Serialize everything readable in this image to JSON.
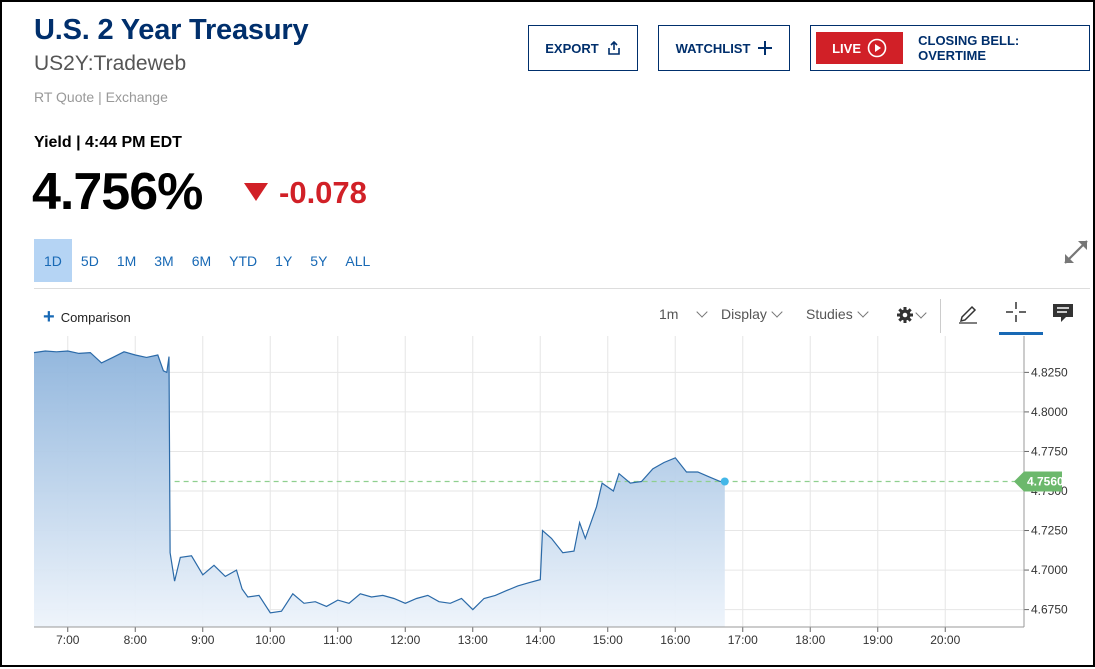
{
  "header": {
    "title": "U.S. 2 Year Treasury",
    "ticker": "US2Y:Tradeweb",
    "quote_source": "RT Quote | Exchange"
  },
  "quote": {
    "yield_label": "Yield | 4:44 PM EDT",
    "value": "4.756%",
    "change": "-0.078",
    "change_color": "#d12027"
  },
  "buttons": {
    "export": "EXPORT",
    "watchlist": "WATCHLIST",
    "live": "LIVE",
    "live_show": "CLOSING BELL: OVERTIME"
  },
  "range_tabs": [
    "1D",
    "5D",
    "1M",
    "3M",
    "6M",
    "YTD",
    "1Y",
    "5Y",
    "ALL"
  ],
  "active_range": "1D",
  "toolbar": {
    "comparison": "Comparison",
    "interval": "1m",
    "display": "Display",
    "studies": "Studies"
  },
  "chart_data": {
    "type": "area",
    "x_unit": "time of day",
    "xlim": [
      "6:30",
      "21:10"
    ],
    "ylim": [
      4.664,
      4.848
    ],
    "x_ticks": [
      "7:00",
      "8:00",
      "9:00",
      "10:00",
      "11:00",
      "12:00",
      "13:00",
      "14:00",
      "15:00",
      "16:00",
      "17:00",
      "18:00",
      "19:00",
      "20:00"
    ],
    "y_ticks": [
      "4.8250",
      "4.8000",
      "4.7750",
      "4.7500",
      "4.7250",
      "4.7000",
      "4.6750"
    ],
    "current_value_label": "4.7560",
    "current_value": 4.756,
    "line_color": "#2b6aa8",
    "grid": true,
    "series": [
      {
        "points": [
          [
            "6:30",
            4.8375
          ],
          [
            "6:40",
            4.8385
          ],
          [
            "6:50",
            4.838
          ],
          [
            "7:00",
            4.8385
          ],
          [
            "7:10",
            4.837
          ],
          [
            "7:20",
            4.8375
          ],
          [
            "7:30",
            4.831
          ],
          [
            "7:40",
            4.8345
          ],
          [
            "7:50",
            4.838
          ],
          [
            "8:00",
            4.836
          ],
          [
            "8:10",
            4.8345
          ],
          [
            "8:20",
            4.836
          ],
          [
            "8:25",
            4.826
          ],
          [
            "8:28",
            4.825
          ],
          [
            "8:30",
            4.835
          ],
          [
            "8:31",
            4.711
          ],
          [
            "8:35",
            4.693
          ],
          [
            "8:40",
            4.708
          ],
          [
            "8:50",
            4.709
          ],
          [
            "9:00",
            4.697
          ],
          [
            "9:10",
            4.703
          ],
          [
            "9:20",
            4.696
          ],
          [
            "9:30",
            4.7
          ],
          [
            "9:35",
            4.688
          ],
          [
            "9:40",
            4.683
          ],
          [
            "9:50",
            4.684
          ],
          [
            "10:00",
            4.673
          ],
          [
            "10:10",
            4.674
          ],
          [
            "10:20",
            4.685
          ],
          [
            "10:30",
            4.679
          ],
          [
            "10:40",
            4.68
          ],
          [
            "10:50",
            4.677
          ],
          [
            "11:00",
            4.681
          ],
          [
            "11:10",
            4.679
          ],
          [
            "11:20",
            4.685
          ],
          [
            "11:30",
            4.683
          ],
          [
            "11:40",
            4.684
          ],
          [
            "11:50",
            4.682
          ],
          [
            "12:00",
            4.679
          ],
          [
            "12:10",
            4.682
          ],
          [
            "12:20",
            4.684
          ],
          [
            "12:30",
            4.68
          ],
          [
            "12:40",
            4.679
          ],
          [
            "12:50",
            4.682
          ],
          [
            "13:00",
            4.675
          ],
          [
            "13:10",
            4.682
          ],
          [
            "13:20",
            4.684
          ],
          [
            "13:30",
            4.687
          ],
          [
            "13:40",
            4.69
          ],
          [
            "13:50",
            4.692
          ],
          [
            "14:00",
            4.694
          ],
          [
            "14:02",
            4.725
          ],
          [
            "14:10",
            4.72
          ],
          [
            "14:20",
            4.711
          ],
          [
            "14:30",
            4.712
          ],
          [
            "14:35",
            4.73
          ],
          [
            "14:40",
            4.72
          ],
          [
            "14:50",
            4.74
          ],
          [
            "14:55",
            4.755
          ],
          [
            "15:05",
            4.75
          ],
          [
            "15:10",
            4.761
          ],
          [
            "15:20",
            4.755
          ],
          [
            "15:30",
            4.756
          ],
          [
            "15:40",
            4.764
          ],
          [
            "15:50",
            4.768
          ],
          [
            "16:00",
            4.771
          ],
          [
            "16:10",
            4.762
          ],
          [
            "16:20",
            4.762
          ],
          [
            "16:30",
            4.759
          ],
          [
            "16:40",
            4.756
          ],
          [
            "16:44",
            4.756
          ]
        ]
      }
    ]
  }
}
